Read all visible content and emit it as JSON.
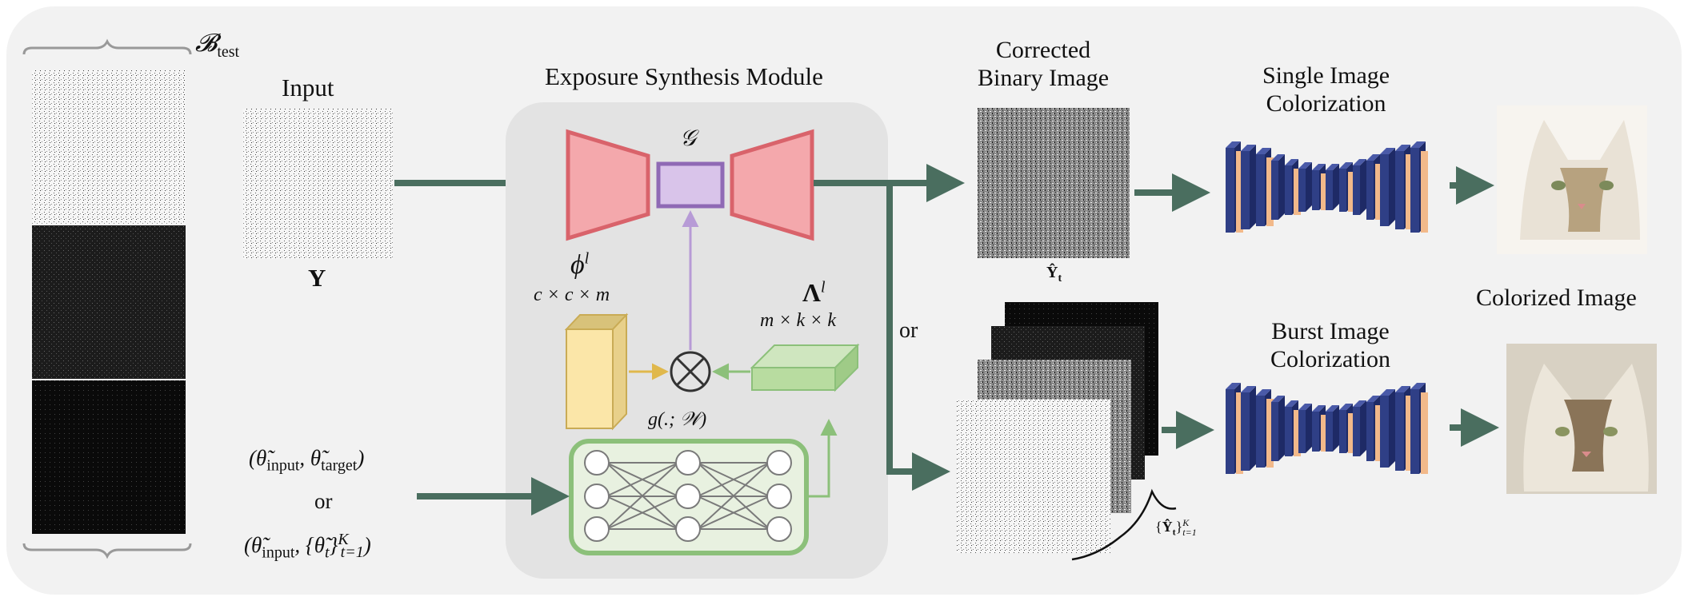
{
  "labels": {
    "b_test": "𝓑",
    "b_test_sub": "test",
    "input": "Input",
    "input_symbol": "Y",
    "esm_title": "Exposure Synthesis Module",
    "generator": "𝒢",
    "phi": "ϕ",
    "phi_sup": "l",
    "phi_dims": "c × c × m",
    "lambda": "Λ",
    "lambda_sup": "l",
    "lambda_dims": "m × k × k",
    "g_func": "g(.; 𝒲)",
    "theta_pair_1": "(θ̃input, θ̃target)",
    "or_left": "or",
    "theta_pair_2": "(θ̃input, {θ̃t}K t=1)",
    "or_mid": "or",
    "corrected_title": "Corrected\nBinary Image",
    "corrected_symbol": "Ŷt",
    "burst_symbol": "{Ŷt}K t=1",
    "single_colorization": "Single Image\nColorization",
    "burst_colorization": "Burst Image\nColorization",
    "colorized_image": "Colorized Image"
  },
  "colors": {
    "panel": "#f2f2f2",
    "module_bg": "#e3e3e3",
    "arrow": "#4a6e5f",
    "encoder_fill": "#f4a8ac",
    "encoder_stroke": "#d9636b",
    "bottleneck_fill": "#d9c4ea",
    "bottleneck_stroke": "#8f6ab5",
    "phi_fill": "#fbe6a8",
    "lambda_fill": "#b8dca0",
    "mlp_border": "#8cc07a",
    "unet_blue": "#2f3f86",
    "unet_orange": "#f2b98a"
  }
}
